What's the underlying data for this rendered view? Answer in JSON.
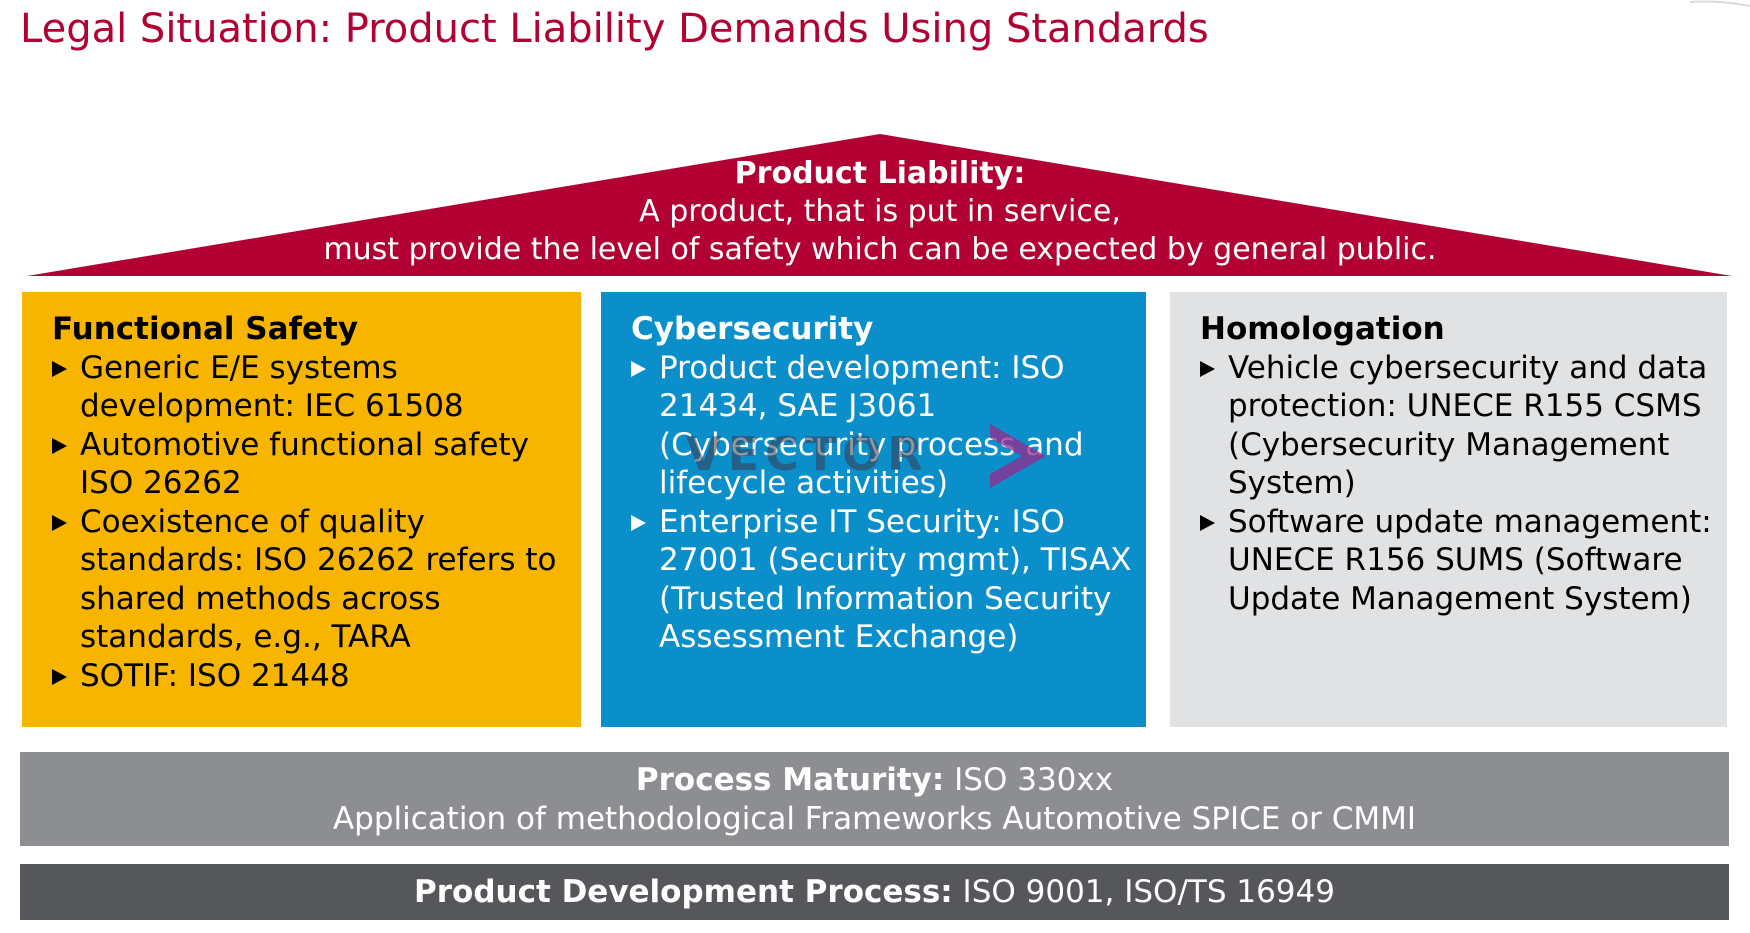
{
  "title": "Legal Situation: Product Liability Demands Using Standards",
  "colors": {
    "title": "#b30033",
    "roof": "#b30033",
    "functional_safety": "#f7b500",
    "cybersecurity": "#0a8fcb",
    "homologation": "#e1e2e4",
    "process_maturity": "#8c8e91",
    "product_development": "#55575b"
  },
  "roof": {
    "heading": "Product Liability:",
    "line1": "A product, that is put in service,",
    "line2": "must provide the level of safety which can be expected by general public."
  },
  "pillars": [
    {
      "title": "Functional Safety",
      "items": [
        "Generic E/E systems development: IEC 61508",
        "Automotive functional safety ISO 26262",
        "Coexistence of quality standards: ISO 26262 refers to shared methods across standards, e.g., TARA",
        "SOTIF: ISO 21448"
      ]
    },
    {
      "title": "Cybersecurity",
      "items": [
        "Product development: ISO 21434, SAE J3061 (Cybersecurity process and lifecycle activities)",
        "Enterprise IT Security: ISO 27001 (Security mgmt), TISAX (Trusted Information Security Assessment Exchange)"
      ]
    },
    {
      "title": "Homologation",
      "items": [
        "Vehicle cybersecurity and data protection: UNECE R155 CSMS (Cybersecurity Management System)",
        "Software update management: UNECE R156 SUMS (Software Update Management System)"
      ]
    }
  ],
  "process_maturity": {
    "label": "Process Maturity:",
    "value": "ISO 330xx",
    "line2": "Application of methodological Frameworks Automotive SPICE or CMMI"
  },
  "product_development": {
    "label": "Product Development Process:",
    "value": "ISO 9001, ISO/TS 16949"
  },
  "watermark": {
    "text": "VECTOR",
    "icon": "chevron-right-icon"
  }
}
